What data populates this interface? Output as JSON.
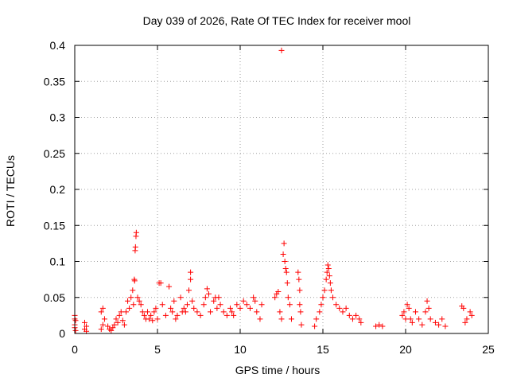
{
  "chart_data": {
    "type": "scatter",
    "title": "Day 039 of 2026, Rate Of TEC Index for receiver mool",
    "xlabel": "GPS time / hours",
    "ylabel": "ROTI / TECUs",
    "xlim": [
      0,
      25
    ],
    "ylim": [
      0,
      0.4
    ],
    "xticks": [
      0,
      5,
      10,
      15,
      20,
      25
    ],
    "yticks": [
      0,
      0.05,
      0.1,
      0.15,
      0.2,
      0.25,
      0.3,
      0.35,
      0.4
    ],
    "xtick_labels": [
      "0",
      "5",
      "10",
      "15",
      "20",
      "25"
    ],
    "ytick_labels": [
      "0",
      "0.05",
      "0.1",
      "0.15",
      "0.2",
      "0.25",
      "0.3",
      "0.35",
      "0.4"
    ],
    "grid": true,
    "marker": "+",
    "color": "#ff0000",
    "series": [
      {
        "name": "ROTI",
        "points": [
          [
            0.0,
            0.008
          ],
          [
            0.0,
            0.012
          ],
          [
            0.0,
            0.02
          ],
          [
            0.0,
            0.025
          ],
          [
            0.05,
            0.004
          ],
          [
            0.05,
            0.018
          ],
          [
            0.6,
            0.006
          ],
          [
            0.6,
            0.015
          ],
          [
            0.7,
            0.003
          ],
          [
            0.7,
            0.01
          ],
          [
            1.6,
            0.006
          ],
          [
            1.6,
            0.03
          ],
          [
            1.7,
            0.035
          ],
          [
            1.7,
            0.012
          ],
          [
            1.8,
            0.02
          ],
          [
            2.0,
            0.01
          ],
          [
            2.1,
            0.006
          ],
          [
            2.2,
            0.004
          ],
          [
            2.3,
            0.008
          ],
          [
            2.4,
            0.012
          ],
          [
            2.5,
            0.02
          ],
          [
            2.6,
            0.015
          ],
          [
            2.7,
            0.025
          ],
          [
            2.8,
            0.03
          ],
          [
            2.9,
            0.018
          ],
          [
            3.0,
            0.012
          ],
          [
            3.1,
            0.03
          ],
          [
            3.2,
            0.045
          ],
          [
            3.3,
            0.035
          ],
          [
            3.4,
            0.05
          ],
          [
            3.5,
            0.06
          ],
          [
            3.55,
            0.04
          ],
          [
            3.6,
            0.075
          ],
          [
            3.62,
            0.073
          ],
          [
            3.65,
            0.115
          ],
          [
            3.67,
            0.12
          ],
          [
            3.7,
            0.135
          ],
          [
            3.72,
            0.14
          ],
          [
            3.8,
            0.05
          ],
          [
            3.9,
            0.045
          ],
          [
            4.0,
            0.04
          ],
          [
            4.1,
            0.03
          ],
          [
            4.2,
            0.025
          ],
          [
            4.3,
            0.02
          ],
          [
            4.4,
            0.03
          ],
          [
            4.5,
            0.02
          ],
          [
            4.6,
            0.025
          ],
          [
            4.7,
            0.018
          ],
          [
            4.8,
            0.03
          ],
          [
            4.9,
            0.035
          ],
          [
            5.0,
            0.02
          ],
          [
            5.1,
            0.07
          ],
          [
            5.2,
            0.07
          ],
          [
            5.3,
            0.04
          ],
          [
            5.5,
            0.025
          ],
          [
            5.7,
            0.065
          ],
          [
            5.8,
            0.035
          ],
          [
            5.9,
            0.03
          ],
          [
            6.0,
            0.045
          ],
          [
            6.1,
            0.02
          ],
          [
            6.2,
            0.025
          ],
          [
            6.4,
            0.05
          ],
          [
            6.5,
            0.03
          ],
          [
            6.6,
            0.035
          ],
          [
            6.7,
            0.03
          ],
          [
            6.8,
            0.04
          ],
          [
            6.9,
            0.06
          ],
          [
            7.0,
            0.085
          ],
          [
            7.0,
            0.075
          ],
          [
            7.1,
            0.045
          ],
          [
            7.2,
            0.035
          ],
          [
            7.4,
            0.03
          ],
          [
            7.6,
            0.025
          ],
          [
            7.8,
            0.04
          ],
          [
            7.9,
            0.05
          ],
          [
            8.0,
            0.062
          ],
          [
            8.1,
            0.055
          ],
          [
            8.2,
            0.03
          ],
          [
            8.4,
            0.045
          ],
          [
            8.5,
            0.05
          ],
          [
            8.6,
            0.035
          ],
          [
            8.7,
            0.05
          ],
          [
            8.8,
            0.04
          ],
          [
            9.0,
            0.03
          ],
          [
            9.2,
            0.025
          ],
          [
            9.4,
            0.035
          ],
          [
            9.5,
            0.03
          ],
          [
            9.6,
            0.025
          ],
          [
            9.8,
            0.04
          ],
          [
            10.0,
            0.035
          ],
          [
            10.2,
            0.045
          ],
          [
            10.4,
            0.04
          ],
          [
            10.6,
            0.035
          ],
          [
            10.8,
            0.05
          ],
          [
            10.9,
            0.045
          ],
          [
            11.0,
            0.03
          ],
          [
            11.2,
            0.02
          ],
          [
            11.3,
            0.04
          ],
          [
            12.1,
            0.05
          ],
          [
            12.2,
            0.055
          ],
          [
            12.3,
            0.058
          ],
          [
            12.4,
            0.03
          ],
          [
            12.5,
            0.02
          ],
          [
            12.5,
            0.393
          ],
          [
            12.6,
            0.11
          ],
          [
            12.65,
            0.125
          ],
          [
            12.7,
            0.1
          ],
          [
            12.75,
            0.09
          ],
          [
            12.8,
            0.085
          ],
          [
            12.85,
            0.07
          ],
          [
            12.9,
            0.05
          ],
          [
            13.0,
            0.04
          ],
          [
            13.1,
            0.02
          ],
          [
            13.5,
            0.085
          ],
          [
            13.55,
            0.075
          ],
          [
            13.6,
            0.06
          ],
          [
            13.6,
            0.04
          ],
          [
            13.65,
            0.03
          ],
          [
            13.7,
            0.012
          ],
          [
            14.5,
            0.01
          ],
          [
            14.6,
            0.02
          ],
          [
            14.8,
            0.03
          ],
          [
            14.9,
            0.04
          ],
          [
            15.0,
            0.05
          ],
          [
            15.1,
            0.06
          ],
          [
            15.2,
            0.075
          ],
          [
            15.25,
            0.085
          ],
          [
            15.3,
            0.095
          ],
          [
            15.35,
            0.09
          ],
          [
            15.4,
            0.08
          ],
          [
            15.45,
            0.07
          ],
          [
            15.5,
            0.06
          ],
          [
            15.6,
            0.05
          ],
          [
            15.8,
            0.04
          ],
          [
            16.0,
            0.035
          ],
          [
            16.2,
            0.03
          ],
          [
            16.4,
            0.035
          ],
          [
            16.6,
            0.025
          ],
          [
            16.8,
            0.02
          ],
          [
            17.0,
            0.025
          ],
          [
            17.2,
            0.02
          ],
          [
            17.3,
            0.015
          ],
          [
            18.2,
            0.01
          ],
          [
            18.4,
            0.012
          ],
          [
            18.6,
            0.01
          ],
          [
            19.8,
            0.025
          ],
          [
            19.9,
            0.03
          ],
          [
            20.0,
            0.02
          ],
          [
            20.1,
            0.04
          ],
          [
            20.2,
            0.035
          ],
          [
            20.3,
            0.02
          ],
          [
            20.4,
            0.015
          ],
          [
            20.6,
            0.03
          ],
          [
            20.8,
            0.02
          ],
          [
            21.0,
            0.012
          ],
          [
            21.2,
            0.03
          ],
          [
            21.3,
            0.045
          ],
          [
            21.4,
            0.035
          ],
          [
            21.5,
            0.02
          ],
          [
            21.8,
            0.015
          ],
          [
            22.0,
            0.012
          ],
          [
            22.2,
            0.02
          ],
          [
            22.4,
            0.01
          ],
          [
            23.4,
            0.038
          ],
          [
            23.5,
            0.035
          ],
          [
            23.6,
            0.015
          ],
          [
            23.7,
            0.02
          ],
          [
            23.9,
            0.03
          ],
          [
            24.0,
            0.025
          ]
        ]
      }
    ]
  }
}
